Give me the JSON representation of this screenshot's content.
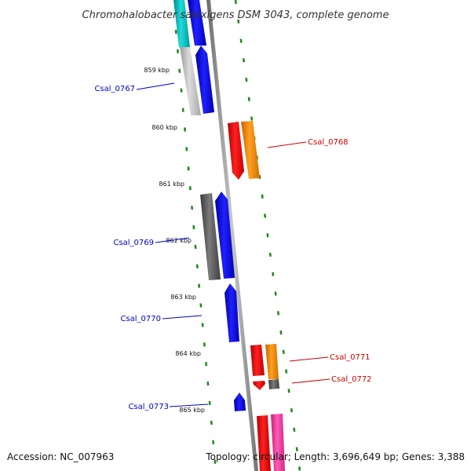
{
  "title": "Chromohalobacter salexigens DSM 3043, complete genome",
  "accession": "Accession: NC_007963",
  "summary": "Topology: circular; Length: 3,696,649 bp; Genes: 3,388",
  "ticks": [
    {
      "label": "859 kbp"
    },
    {
      "label": "860 kbp"
    },
    {
      "label": "861 kbp"
    },
    {
      "label": "862 kbp"
    },
    {
      "label": "863 kbp"
    },
    {
      "label": "864 kbp"
    },
    {
      "label": "865 kbp"
    }
  ],
  "gene_labels": [
    {
      "id": "csal_0767",
      "text": "Csal_0767",
      "color": "#0000cc"
    },
    {
      "id": "csal_0768",
      "text": "Csal_0768",
      "color": "#cc0000"
    },
    {
      "id": "csal_0769",
      "text": "Csal_0769",
      "color": "#0000cc"
    },
    {
      "id": "csal_0770",
      "text": "Csal_0770",
      "color": "#0000cc"
    },
    {
      "id": "csal_0771",
      "text": "Csal_0771",
      "color": "#cc0000"
    },
    {
      "id": "csal_0772",
      "text": "Csal_0772",
      "color": "#cc0000"
    },
    {
      "id": "csal_0773",
      "text": "Csal_0773",
      "color": "#0000cc"
    }
  ],
  "colors": {
    "backbone": "#8c8c8c",
    "forward_cds": "#0000ff",
    "reverse_cds": "#ff0000",
    "orange_feature": "#ff8c00",
    "cyan_feature": "#00b4b4",
    "gray_feature": "#bdbdbd",
    "dark_gray_feature": "#555555",
    "pink_feature": "#ff3ca0",
    "gc_dots": "#1a8a1a"
  }
}
